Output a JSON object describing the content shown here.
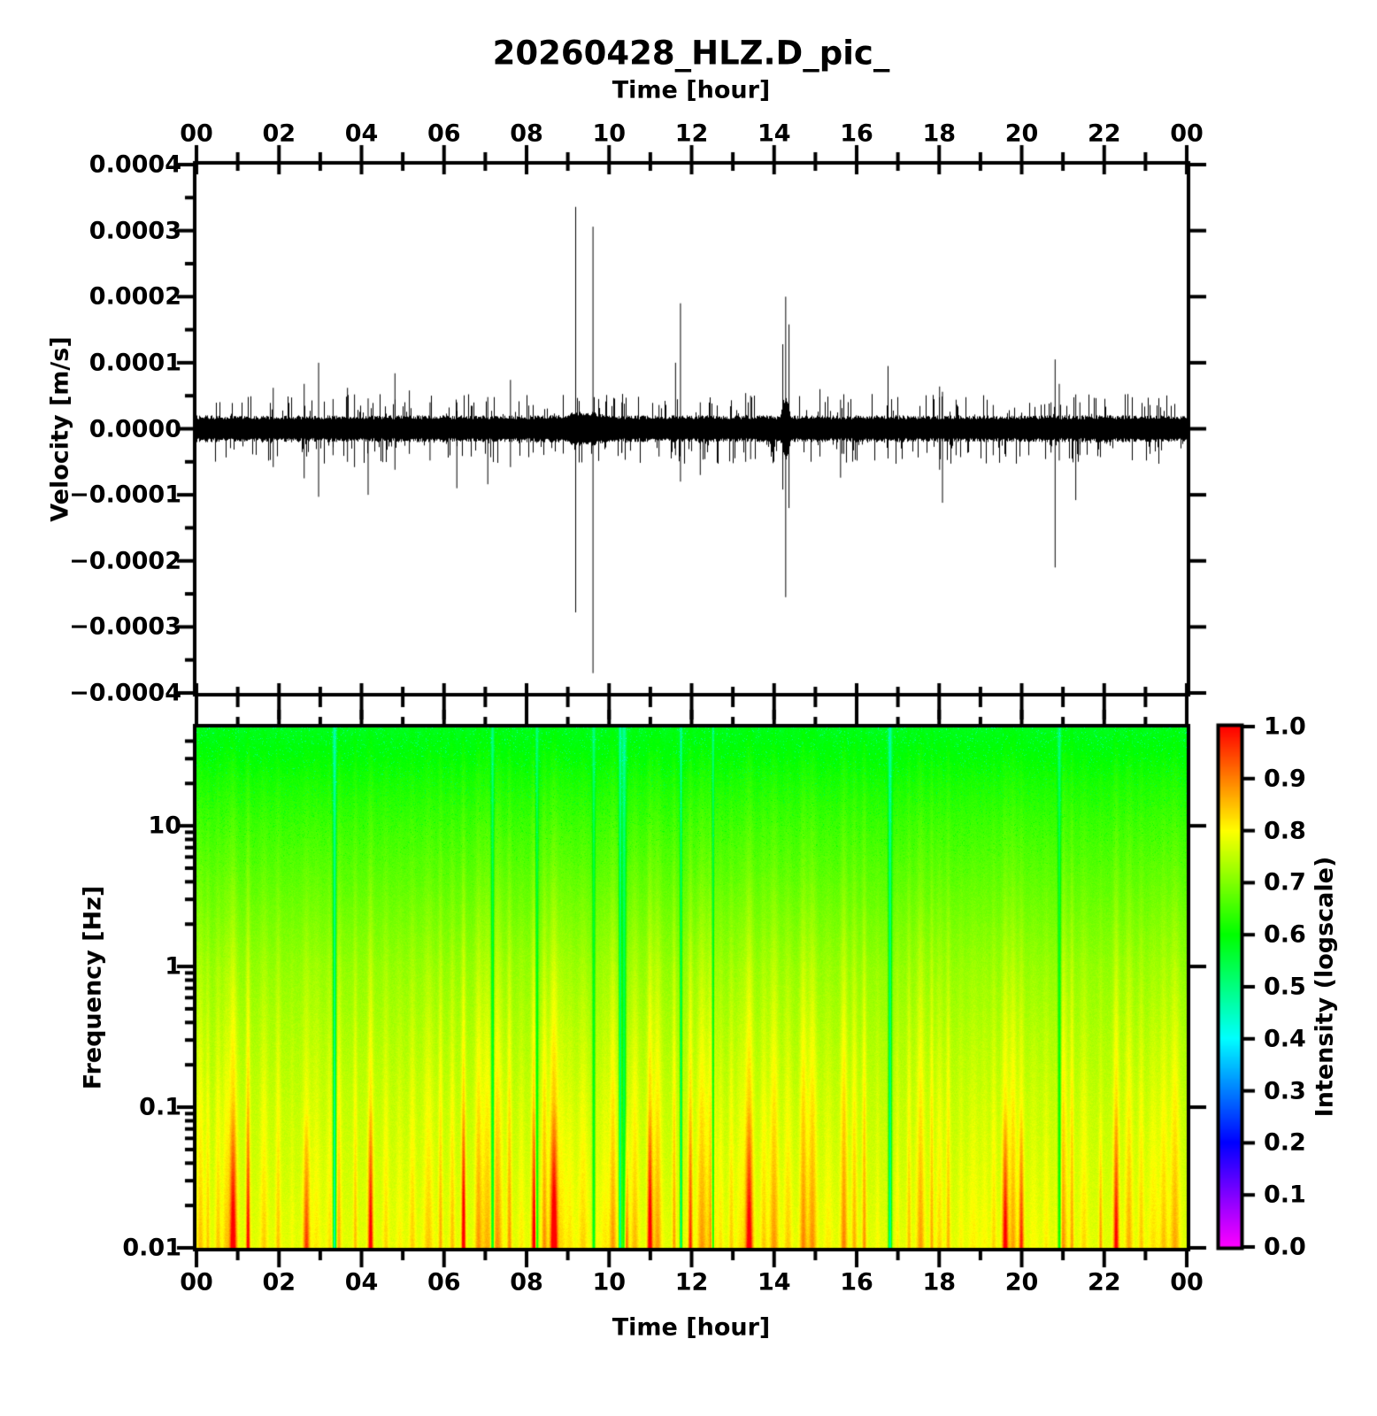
{
  "figure": {
    "title": "20260428_HLZ.D_pic_",
    "background_color": "#ffffff",
    "text_color": "#000000"
  },
  "chart_data": [
    {
      "panel": "seismogram",
      "type": "line",
      "xlabel": "Time [hour]",
      "ylabel": "Velocity [m/s]",
      "line_color": "#000000",
      "xlim_hours": [
        0,
        24
      ],
      "ylim": [
        -0.0004,
        0.0004
      ],
      "x_tick_hours": [
        0,
        2,
        4,
        6,
        8,
        10,
        12,
        14,
        16,
        18,
        20,
        22,
        24
      ],
      "x_tick_labels": [
        "00",
        "02",
        "04",
        "06",
        "08",
        "10",
        "12",
        "14",
        "16",
        "18",
        "20",
        "22",
        "00"
      ],
      "y_tick_values": [
        0.0004,
        0.0003,
        0.0002,
        0.0001,
        0.0,
        -0.0001,
        -0.0002,
        -0.0003,
        -0.0004
      ],
      "y_tick_labels": [
        "0.0004",
        "0.0003",
        "0.0002",
        "0.0001",
        "0.0000",
        "−0.0001",
        "−0.0002",
        "−0.0003",
        "−0.0004"
      ],
      "noise_band_amplitude": 2e-05,
      "burst": {
        "t": 14.28,
        "extra_amplitude": 2.8e-05,
        "sigma_hours": 0.08
      },
      "spikes": [
        {
          "t": 1.85,
          "up": 6.2e-05,
          "down": -5.8e-05
        },
        {
          "t": 2.6,
          "up": 6.8e-05,
          "down": -7.5e-05
        },
        {
          "t": 2.95,
          "up": 0.0001,
          "down": -0.000103
        },
        {
          "t": 3.3,
          "up": 4.5e-05,
          "down": -4e-05
        },
        {
          "t": 3.65,
          "up": 6.2e-05,
          "down": -5e-05
        },
        {
          "t": 3.82,
          "up": 5.2e-05,
          "down": -5.8e-05
        },
        {
          "t": 4.15,
          "up": 4.6e-05,
          "down": -0.0001
        },
        {
          "t": 4.8,
          "up": 8.4e-05,
          "down": -6.2e-05
        },
        {
          "t": 5.15,
          "up": 5.8e-05,
          "down": -3.8e-05
        },
        {
          "t": 5.65,
          "up": 4e-05,
          "down": -4.8e-05
        },
        {
          "t": 6.3,
          "up": 4e-05,
          "down": -9e-05
        },
        {
          "t": 6.65,
          "up": 3.5e-05,
          "down": -4.2e-05
        },
        {
          "t": 7.05,
          "up": 4.8e-05,
          "down": -8.4e-05
        },
        {
          "t": 7.6,
          "up": 7.4e-05,
          "down": -5.8e-05
        },
        {
          "t": 8.15,
          "up": 3.6e-05,
          "down": -3.6e-05
        },
        {
          "t": 9.18,
          "up": 0.000336,
          "down": -0.000278
        },
        {
          "t": 9.6,
          "up": 0.000306,
          "down": -0.00037
        },
        {
          "t": 10.3,
          "up": 4e-05,
          "down": -3.6e-05
        },
        {
          "t": 11.2,
          "up": 3.6e-05,
          "down": -4.2e-05
        },
        {
          "t": 11.6,
          "up": 0.0001,
          "down": -4e-05
        },
        {
          "t": 11.72,
          "up": 0.00019,
          "down": -8e-05
        },
        {
          "t": 12.2,
          "up": 4e-05,
          "down": -7e-05
        },
        {
          "t": 13.3,
          "up": 5.4e-05,
          "down": -5e-05
        },
        {
          "t": 13.42,
          "up": 5e-05,
          "down": -4.6e-05
        },
        {
          "t": 14.2,
          "up": 0.000128,
          "down": -9.2e-05
        },
        {
          "t": 14.27,
          "up": 0.0002,
          "down": -0.000255
        },
        {
          "t": 14.35,
          "up": 0.000158,
          "down": -0.00012
        },
        {
          "t": 15.1,
          "up": 6e-05,
          "down": -4.2e-05
        },
        {
          "t": 15.6,
          "up": 4.4e-05,
          "down": -7.4e-05
        },
        {
          "t": 16.75,
          "up": 9.5e-05,
          "down": -4.5e-05
        },
        {
          "t": 18.0,
          "up": 6.4e-05,
          "down": -6.2e-05
        },
        {
          "t": 18.07,
          "up": 5.6e-05,
          "down": -0.000112
        },
        {
          "t": 18.4,
          "up": 4.4e-05,
          "down": -4e-05
        },
        {
          "t": 19.3,
          "up": 3.6e-05,
          "down": -4e-05
        },
        {
          "t": 20.7,
          "up": 4e-05,
          "down": -3.6e-05
        },
        {
          "t": 20.8,
          "up": 0.000105,
          "down": -0.00021
        },
        {
          "t": 20.9,
          "up": 6.8e-05,
          "down": -4.8e-05
        },
        {
          "t": 21.3,
          "up": 5.2e-05,
          "down": -0.000108
        },
        {
          "t": 21.4,
          "up": 4e-05,
          "down": -4e-05
        },
        {
          "t": 23.1,
          "up": 3.6e-05,
          "down": -3.8e-05
        }
      ]
    },
    {
      "panel": "spectrogram",
      "type": "heatmap",
      "xlabel": "Time [hour]",
      "ylabel": "Frequency [Hz]",
      "yscale": "log",
      "ylim_hz": [
        0.01,
        50
      ],
      "y_tick_values": [
        10,
        1,
        0.1,
        0.01
      ],
      "y_tick_labels": [
        "10",
        "1",
        "0.1",
        "0.01"
      ],
      "x_tick_hours": [
        0,
        2,
        4,
        6,
        8,
        10,
        12,
        14,
        16,
        18,
        20,
        22,
        24
      ],
      "x_tick_labels": [
        "00",
        "02",
        "04",
        "06",
        "08",
        "10",
        "12",
        "14",
        "16",
        "18",
        "20",
        "22",
        "00"
      ],
      "intensity_vs_freq": [
        [
          50,
          0.578
        ],
        [
          20,
          0.618
        ],
        [
          10,
          0.645
        ],
        [
          3,
          0.68
        ],
        [
          1,
          0.712
        ],
        [
          0.3,
          0.735
        ],
        [
          0.1,
          0.752
        ],
        [
          0.03,
          0.765
        ],
        [
          0.01,
          0.778
        ]
      ],
      "stripe_pattern": {
        "description": "dense vertical stripes, stronger toward low frequency; yellow/orange bands, sparse red event columns and thin green gap lines",
        "stripe_spacing_px_min": 8,
        "stripe_spacing_px_max": 19,
        "red_event_fraction": 0.18,
        "green_gap_count": 10
      },
      "colorbar": {
        "label": "Intensity (logscale)",
        "range": [
          0,
          1
        ],
        "tick_labels": [
          "1.0",
          "0.9",
          "0.8",
          "0.7",
          "0.6",
          "0.5",
          "0.4",
          "0.3",
          "0.2",
          "0.1",
          "0.0"
        ],
        "tick_values": [
          1.0,
          0.9,
          0.8,
          0.7,
          0.6,
          0.5,
          0.4,
          0.3,
          0.2,
          0.1,
          0.0
        ],
        "colormap_stops": [
          [
            "0.0",
            "#ff00ff"
          ],
          [
            "0.1",
            "#8000ff"
          ],
          [
            "0.2",
            "#0000ff"
          ],
          [
            "0.3",
            "#0080ff"
          ],
          [
            "0.4",
            "#00ffff"
          ],
          [
            "0.5",
            "#00ff80"
          ],
          [
            "0.6",
            "#00ff00"
          ],
          [
            "0.7",
            "#80ff00"
          ],
          [
            "0.8",
            "#ffff00"
          ],
          [
            "0.9",
            "#ff8000"
          ],
          [
            "1.0",
            "#ff0000"
          ]
        ]
      }
    }
  ]
}
